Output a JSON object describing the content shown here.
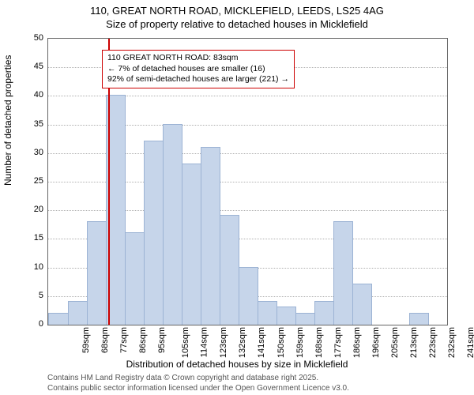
{
  "title": "110, GREAT NORTH ROAD, MICKLEFIELD, LEEDS, LS25 4AG",
  "subtitle": "Size of property relative to detached houses in Micklefield",
  "chart": {
    "type": "histogram",
    "ylabel": "Number of detached properties",
    "xlabel": "Distribution of detached houses by size in Micklefield",
    "ylim": [
      0,
      50
    ],
    "ytick_step": 5,
    "bar_color": "#c6d5ea",
    "bar_border": "#9cb3d4",
    "grid_color": "#b0b0b0",
    "border_color": "#666666",
    "background": "#ffffff",
    "categories": [
      "59sqm",
      "68sqm",
      "77sqm",
      "86sqm",
      "95sqm",
      "105sqm",
      "114sqm",
      "123sqm",
      "132sqm",
      "141sqm",
      "150sqm",
      "159sqm",
      "168sqm",
      "177sqm",
      "186sqm",
      "196sqm",
      "205sqm",
      "213sqm",
      "223sqm",
      "232sqm",
      "241sqm"
    ],
    "values": [
      2,
      4,
      18,
      40,
      16,
      32,
      35,
      28,
      31,
      19,
      10,
      4,
      3,
      2,
      4,
      18,
      7,
      0,
      0,
      2,
      0
    ],
    "marker": {
      "color": "#cc0000",
      "position_index": 2.67
    },
    "annotation": {
      "border_color": "#cc0000",
      "lines": [
        "110 GREAT NORTH ROAD: 83sqm",
        "← 7% of detached houses are smaller (16)",
        "92% of semi-detached houses are larger (221) →"
      ]
    }
  },
  "footer": {
    "line1": "Contains HM Land Registry data © Crown copyright and database right 2025.",
    "line2": "Contains public sector information licensed under the Open Government Licence v3.0."
  }
}
